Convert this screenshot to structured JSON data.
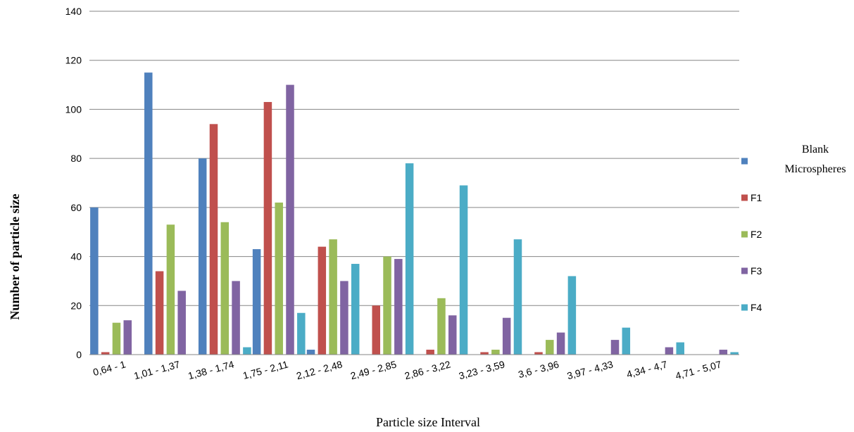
{
  "chart_data": {
    "type": "bar",
    "title": "",
    "xlabel": "Particle size Interval",
    "ylabel": "Number of particle size",
    "ylim": [
      0,
      140
    ],
    "yticks": [
      0,
      20,
      40,
      60,
      80,
      100,
      120,
      140
    ],
    "grid": true,
    "legend_position": "right",
    "categories": [
      "0,64 - 1",
      "1,01 - 1,37",
      "1,38 - 1,74",
      "1,75 - 2,11",
      "2,12 - 2,48",
      "2,49 - 2,85",
      "2,86 - 3,22",
      "3,23 - 3,59",
      "3,6 - 3,96",
      "3,97 - 4,33",
      "4,34 - 4,7",
      "4,71 - 5,07"
    ],
    "series": [
      {
        "name": "Blank Microspheres",
        "color": "#4f81bd",
        "values": [
          60,
          115,
          80,
          43,
          2,
          0,
          0,
          0,
          0,
          0,
          0,
          0
        ]
      },
      {
        "name": "F1",
        "color": "#c0504d",
        "values": [
          1,
          34,
          94,
          103,
          44,
          20,
          2,
          1,
          1,
          0,
          0,
          0
        ]
      },
      {
        "name": "F2",
        "color": "#9bbb59",
        "values": [
          13,
          53,
          54,
          62,
          47,
          40,
          23,
          2,
          6,
          0,
          0,
          0
        ]
      },
      {
        "name": "F3",
        "color": "#8064a2",
        "values": [
          14,
          26,
          30,
          110,
          30,
          39,
          16,
          15,
          9,
          6,
          3,
          2
        ]
      },
      {
        "name": "F4",
        "color": "#4bacc6",
        "values": [
          0,
          0,
          3,
          17,
          37,
          78,
          69,
          47,
          32,
          11,
          5,
          1
        ]
      }
    ]
  }
}
